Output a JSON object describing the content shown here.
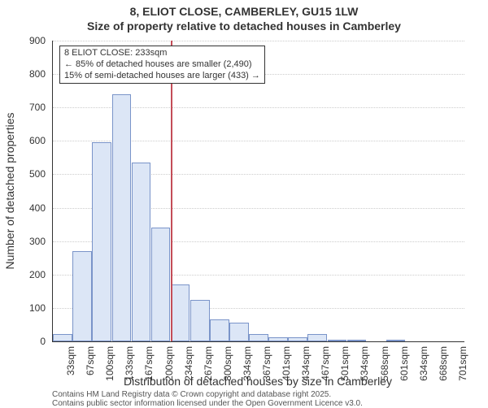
{
  "title_line1": "8, ELIOT CLOSE, CAMBERLEY, GU15 1LW",
  "title_line2": "Size of property relative to detached houses in Camberley",
  "ylabel": "Number of detached properties",
  "xlabel": "Distribution of detached houses by size in Camberley",
  "attribution_line1": "Contains HM Land Registry data © Crown copyright and database right 2025.",
  "attribution_line2": "Contains public sector information licensed under the Open Government Licence v3.0.",
  "chart": {
    "type": "histogram",
    "plot_bg": "#ffffff",
    "grid_color": "#cccccc",
    "axis_color": "#333333",
    "bar_fill": "#dce6f6",
    "bar_border": "#7a94c9",
    "ref_line_color": "#c44d58",
    "y": {
      "min": 0,
      "max": 900,
      "step": 100
    },
    "x": {
      "labels": [
        "33sqm",
        "67sqm",
        "100sqm",
        "133sqm",
        "167sqm",
        "200sqm",
        "234sqm",
        "267sqm",
        "300sqm",
        "334sqm",
        "367sqm",
        "401sqm",
        "434sqm",
        "467sqm",
        "501sqm",
        "534sqm",
        "568sqm",
        "601sqm",
        "634sqm",
        "668sqm",
        "701sqm"
      ]
    },
    "bars": [
      22,
      270,
      595,
      740,
      535,
      340,
      170,
      125,
      65,
      55,
      22,
      12,
      12,
      22,
      5,
      3,
      0,
      5,
      0,
      0,
      0
    ],
    "ref_value_category_index": 6,
    "annotation": {
      "line1": "8 ELIOT CLOSE: 233sqm",
      "line2": "← 85% of detached houses are smaller (2,490)",
      "line3": "15% of semi-detached houses are larger (433) →"
    },
    "title_fontsize": 14,
    "label_fontsize": 14,
    "tick_fontsize": 12,
    "annot_fontsize": 11
  }
}
